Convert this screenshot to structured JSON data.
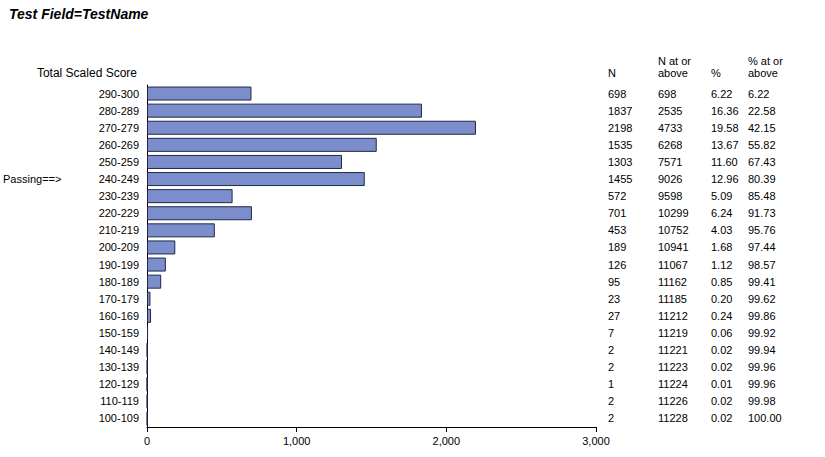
{
  "chart_data": {
    "type": "bar",
    "orientation": "horizontal",
    "title": "Test Field=TestName",
    "ylabel": "Total Scaled Score",
    "categories": [
      "290-300",
      "280-289",
      "270-279",
      "260-269",
      "250-259",
      "240-249",
      "230-239",
      "220-229",
      "210-219",
      "200-209",
      "190-199",
      "180-189",
      "170-179",
      "160-169",
      "150-159",
      "140-149",
      "130-139",
      "120-129",
      "110-119",
      "100-109"
    ],
    "values": [
      698,
      1837,
      2198,
      1535,
      1303,
      1455,
      572,
      701,
      453,
      189,
      126,
      95,
      23,
      27,
      7,
      2,
      2,
      1,
      2,
      2
    ],
    "color": "#7b8dcb",
    "xlim": [
      0,
      3000
    ],
    "xticks": [
      0,
      1000,
      2000,
      3000
    ],
    "grid": false,
    "annotations": [
      {
        "text": "Passing==>",
        "category": "240-249"
      }
    ],
    "table": {
      "value_header": "N",
      "columns": [
        {
          "header": "N at or\nabove",
          "values": [
            "698",
            "2535",
            "4733",
            "6268",
            "7571",
            "9026",
            "9598",
            "10299",
            "10752",
            "10941",
            "11067",
            "11162",
            "11185",
            "11212",
            "11219",
            "11221",
            "11223",
            "11224",
            "11226",
            "11228"
          ]
        },
        {
          "header": "%",
          "values": [
            "6.22",
            "16.36",
            "19.58",
            "13.67",
            "11.60",
            "12.96",
            "5.09",
            "6.24",
            "4.03",
            "1.68",
            "1.12",
            "0.85",
            "0.20",
            "0.24",
            "0.06",
            "0.02",
            "0.02",
            "0.01",
            "0.02",
            "0.02"
          ]
        },
        {
          "header": "% at or\nabove",
          "values": [
            "6.22",
            "22.58",
            "42.15",
            "55.82",
            "67.43",
            "80.39",
            "85.48",
            "91.73",
            "95.76",
            "97.44",
            "98.57",
            "99.41",
            "99.62",
            "99.86",
            "99.92",
            "99.94",
            "99.96",
            "99.96",
            "99.98",
            "100.00"
          ]
        }
      ]
    }
  }
}
